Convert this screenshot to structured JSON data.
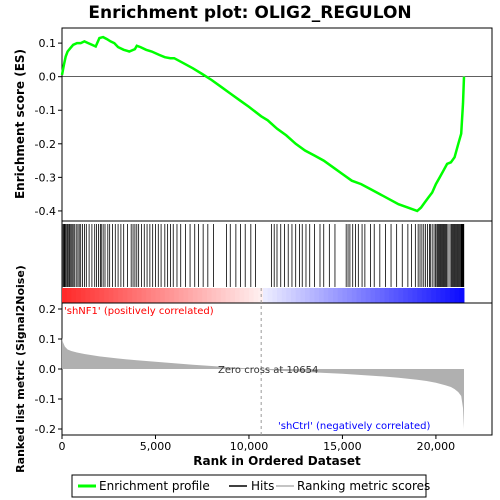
{
  "chart_data": {
    "type": "line",
    "title": "Enrichment plot: OLIG2_REGULON",
    "xlabel": "Rank in Ordered Dataset",
    "es_panel": {
      "ylabel": "Enrichment score (ES)",
      "ylim": [
        -0.43,
        0.145
      ],
      "yticks": [
        0.1,
        0.0,
        -0.1,
        -0.2,
        -0.3,
        -0.4
      ],
      "ytick_labels": [
        "0.1",
        "0.0",
        "-0.1",
        "-0.2",
        "-0.3",
        "-0.4"
      ],
      "line_color": "#00ff00",
      "series": [
        {
          "name": "Enrichment profile",
          "x": [
            0,
            100,
            200,
            300,
            450,
            600,
            800,
            1000,
            1200,
            1400,
            1600,
            1800,
            2000,
            2200,
            2400,
            2600,
            2800,
            3000,
            3300,
            3600,
            3900,
            4000,
            4200,
            4500,
            4800,
            5200,
            5500,
            5800,
            6000,
            6500,
            7000,
            7500,
            8000,
            8500,
            9000,
            9500,
            10000,
            10654,
            11000,
            11500,
            12000,
            12500,
            13000,
            13500,
            14000,
            14500,
            15000,
            15500,
            16000,
            16500,
            17000,
            17500,
            18000,
            18500,
            19000,
            19200,
            19400,
            19600,
            19800,
            20000,
            20200,
            20400,
            20600,
            20800,
            21000,
            21200,
            21350,
            21450,
            21500
          ],
          "y": [
            0.005,
            0.035,
            0.06,
            0.075,
            0.085,
            0.095,
            0.1,
            0.1,
            0.105,
            0.1,
            0.095,
            0.09,
            0.115,
            0.118,
            0.112,
            0.105,
            0.1,
            0.088,
            0.08,
            0.075,
            0.082,
            0.092,
            0.088,
            0.08,
            0.075,
            0.065,
            0.058,
            0.055,
            0.055,
            0.04,
            0.025,
            0.008,
            -0.01,
            -0.03,
            -0.05,
            -0.07,
            -0.09,
            -0.118,
            -0.13,
            -0.155,
            -0.175,
            -0.2,
            -0.22,
            -0.235,
            -0.25,
            -0.27,
            -0.29,
            -0.31,
            -0.32,
            -0.335,
            -0.35,
            -0.365,
            -0.38,
            -0.39,
            -0.4,
            -0.39,
            -0.375,
            -0.36,
            -0.345,
            -0.32,
            -0.3,
            -0.28,
            -0.26,
            -0.255,
            -0.24,
            -0.2,
            -0.17,
            -0.08,
            0.0
          ]
        }
      ]
    },
    "hits_panel": {
      "legend_label": "Hits",
      "gene_hit_ranks": [
        60,
        110,
        150,
        200,
        260,
        310,
        370,
        420,
        480,
        540,
        600,
        680,
        760,
        850,
        920,
        1000,
        1100,
        1200,
        1300,
        1450,
        1600,
        1750,
        1850,
        1950,
        2050,
        2100,
        2200,
        2300,
        2450,
        2550,
        2700,
        2850,
        3000,
        3150,
        3300,
        3500,
        3700,
        3800,
        3900,
        4000,
        4100,
        4250,
        4400,
        4550,
        4700,
        4850,
        5000,
        5150,
        5300,
        5500,
        5650,
        5800,
        5950,
        6150,
        6350,
        6600,
        6850,
        7100,
        7300,
        7550,
        7800,
        8100,
        8800,
        9000,
        9300,
        9550,
        9800,
        10100,
        10350,
        11200,
        11350,
        11500,
        11700,
        11900,
        12100,
        12300,
        12500,
        12700,
        12850,
        13050,
        13250,
        13500,
        13800,
        14000,
        14300,
        14600,
        15200,
        15300,
        15400,
        15550,
        15700,
        15850,
        16050,
        16200,
        16500,
        16700,
        17000,
        17300,
        17600,
        17900,
        18200,
        18500,
        18700,
        18900,
        19050,
        19150,
        19250,
        19350,
        19450,
        19550,
        19650,
        19700,
        19800,
        19900,
        19980,
        20050,
        20100,
        20150,
        20200,
        20250,
        20300,
        20350,
        20400,
        20450,
        20500,
        20550,
        20600,
        20700,
        20800,
        20850,
        20900,
        20950,
        21000,
        21050,
        21100,
        21150,
        21200,
        21250,
        21300,
        21350,
        21380,
        21400,
        21430,
        21460,
        21490
      ]
    },
    "metric_panel": {
      "ylabel": "Ranked list metric (Signal2Noise)",
      "legend_label": "Ranking metric scores",
      "ylim": [
        -0.22,
        0.22
      ],
      "yticks": [
        0.2,
        0.1,
        0.0,
        -0.1,
        -0.2
      ],
      "ytick_labels": [
        "0.2",
        "0.1",
        "0.0",
        "-0.1",
        "-0.2"
      ],
      "x": [
        0,
        50,
        150,
        300,
        500,
        800,
        1200,
        2000,
        3000,
        4000,
        5000,
        6000,
        7000,
        8000,
        9000,
        10000,
        10654,
        11000,
        12000,
        13000,
        14000,
        15000,
        16000,
        17000,
        18000,
        19000,
        19500,
        20000,
        20500,
        20800,
        21000,
        21200,
        21350,
        21450,
        21500
      ],
      "values": [
        0.105,
        0.09,
        0.075,
        0.065,
        0.06,
        0.055,
        0.05,
        0.042,
        0.035,
        0.029,
        0.024,
        0.019,
        0.014,
        0.01,
        0.006,
        0.002,
        0.0,
        -0.003,
        -0.007,
        -0.01,
        -0.013,
        -0.016,
        -0.02,
        -0.024,
        -0.029,
        -0.036,
        -0.04,
        -0.046,
        -0.054,
        -0.06,
        -0.067,
        -0.077,
        -0.09,
        -0.13,
        -0.2
      ],
      "annotations": {
        "positive": "'shNF1' (positively correlated)",
        "negative": "'shCtrl' (negatively correlated)",
        "zero_cross": "Zero cross at 10654"
      }
    },
    "x_axis": {
      "xlim": [
        0,
        23000
      ],
      "xticks": [
        0,
        5000,
        10000,
        15000,
        20000
      ],
      "xtick_labels": [
        "0",
        "5,000",
        "10,000",
        "15,000",
        "20,000"
      ],
      "zero_cross_rank": 10654
    },
    "legend": {
      "placement": "bottom",
      "entries": [
        "Enrichment profile",
        "Hits",
        "Ranking metric scores"
      ]
    },
    "colors": {
      "enrichment_line": "#00ff00",
      "positive_bar": "#ff0000",
      "negative_bar": "#0000ff",
      "metric_fill": "#b0b0b0",
      "positive_text": "#ff0000",
      "negative_text": "#0000ff"
    }
  }
}
